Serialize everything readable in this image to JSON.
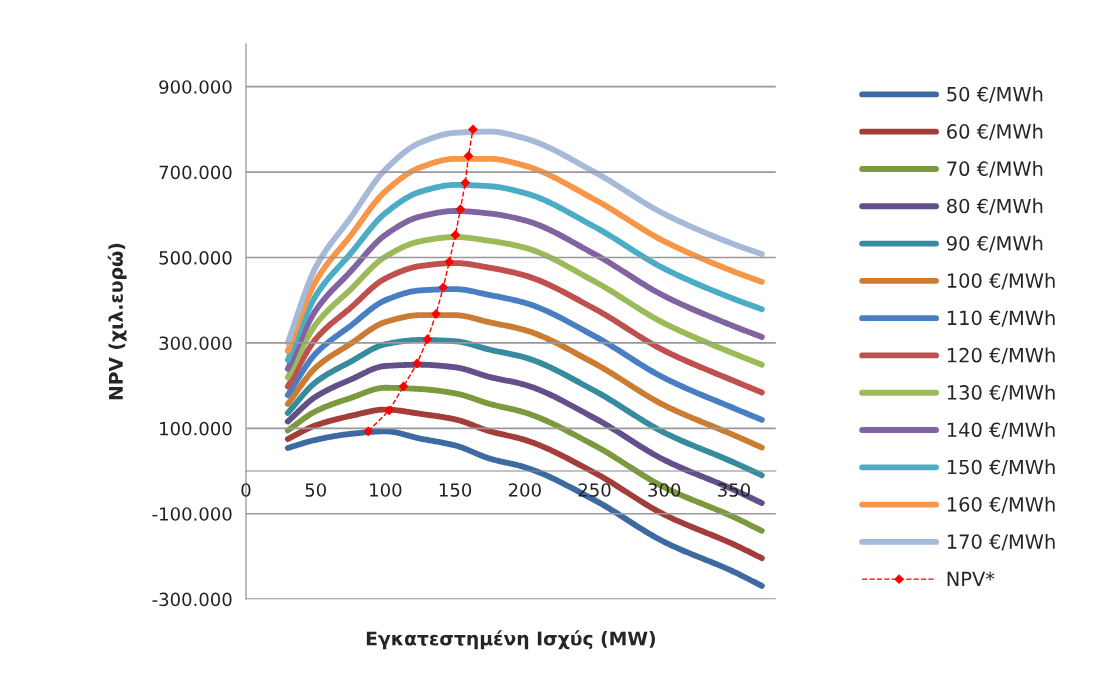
{
  "chart_data": {
    "type": "line",
    "xlabel": "Εγκατεστημένη Ισχύς (MW)",
    "ylabel": "NPV (χιλ.ευρώ)",
    "x": [
      30,
      50,
      75,
      100,
      125,
      150,
      175,
      200,
      250,
      300,
      350,
      370
    ],
    "xlim": [
      0,
      380
    ],
    "xticks": [
      0,
      50,
      100,
      150,
      200,
      250,
      300,
      350
    ],
    "ylim": [
      -300000,
      1000000
    ],
    "yticks": [
      {
        "value": -300000,
        "label": "-300.000"
      },
      {
        "value": -100000,
        "label": "-100.000"
      },
      {
        "value": 100000,
        "label": "100.000"
      },
      {
        "value": 300000,
        "label": "300.000"
      },
      {
        "value": 500000,
        "label": "500.000"
      },
      {
        "value": 700000,
        "label": "700.000"
      },
      {
        "value": 900000,
        "label": "900.000"
      }
    ],
    "grid": "y",
    "legend": "right",
    "marker": "none",
    "line_style": "solid",
    "series": [
      {
        "name": "50 €/MWh",
        "color": "#3d6aa1",
        "values": [
          54000,
          73000,
          87000,
          93000,
          76000,
          60000,
          29000,
          9000,
          -68000,
          -166000,
          -236000,
          -269000
        ]
      },
      {
        "name": "60 €/MWh",
        "color": "#a33d3a",
        "values": [
          75000,
          107000,
          129000,
          144000,
          134000,
          121000,
          93000,
          73000,
          -4000,
          -102000,
          -172000,
          -204000
        ]
      },
      {
        "name": "70 €/MWh",
        "color": "#7b9a3d",
        "values": [
          95000,
          140000,
          171000,
          195000,
          192000,
          182000,
          157000,
          137000,
          60000,
          -38000,
          -108000,
          -140000
        ]
      },
      {
        "name": "80 €/MWh",
        "color": "#634f8a",
        "values": [
          116000,
          174000,
          214000,
          246000,
          249000,
          243000,
          220000,
          202000,
          124000,
          26000,
          -44000,
          -75000
        ]
      },
      {
        "name": "90 €/MWh",
        "color": "#378b9f",
        "values": [
          136000,
          208000,
          256000,
          297000,
          307000,
          304000,
          284000,
          266000,
          188000,
          90000,
          20000,
          -10000
        ]
      },
      {
        "name": "100 €/MWh",
        "color": "#cc7b33",
        "values": [
          157000,
          242000,
          298000,
          349000,
          365000,
          365000,
          348000,
          330000,
          252000,
          154000,
          84000,
          55000
        ]
      },
      {
        "name": "110 €/MWh",
        "color": "#4a7ec3",
        "values": [
          178000,
          275000,
          340000,
          400000,
          423000,
          426000,
          412000,
          394000,
          316000,
          218000,
          147000,
          120000
        ]
      },
      {
        "name": "120 €/MWh",
        "color": "#c0504d",
        "values": [
          198000,
          309000,
          382000,
          451000,
          480000,
          487000,
          476000,
          458000,
          380000,
          282000,
          211000,
          184000
        ]
      },
      {
        "name": "130 €/MWh",
        "color": "#9bbb59",
        "values": [
          219000,
          343000,
          425000,
          502000,
          538000,
          548000,
          539000,
          523000,
          444000,
          346000,
          275000,
          249000
        ]
      },
      {
        "name": "140 €/MWh",
        "color": "#8064a2",
        "values": [
          239000,
          376000,
          467000,
          553000,
          596000,
          609000,
          603000,
          587000,
          508000,
          410000,
          339000,
          314000
        ]
      },
      {
        "name": "150 €/MWh",
        "color": "#4bacc6",
        "values": [
          260000,
          410000,
          509000,
          604000,
          654000,
          670000,
          667000,
          651000,
          572000,
          474000,
          403000,
          379000
        ]
      },
      {
        "name": "160 €/MWh",
        "color": "#f79646",
        "values": [
          281000,
          444000,
          551000,
          655000,
          711000,
          731000,
          731000,
          715000,
          636000,
          538000,
          467000,
          443000
        ]
      },
      {
        "name": "170 €/MWh",
        "color": "#a6b9d8",
        "values": [
          301000,
          477000,
          593000,
          706000,
          769000,
          792000,
          795000,
          779000,
          700000,
          602000,
          531000,
          508000
        ]
      },
      {
        "name": "NPV*",
        "color": "#ff0000",
        "marker": "diamond",
        "line_style": "dashed",
        "x": [
          87.7,
          102.7,
          113,
          122.7,
          130.2,
          136.3,
          141.5,
          145.8,
          150.2,
          153.8,
          157.3,
          159.6,
          162.8
        ],
        "values": [
          93000,
          142000,
          198000,
          252000,
          309000,
          368000,
          430000,
          490000,
          553000,
          613000,
          675000,
          738000,
          800000
        ]
      }
    ]
  }
}
